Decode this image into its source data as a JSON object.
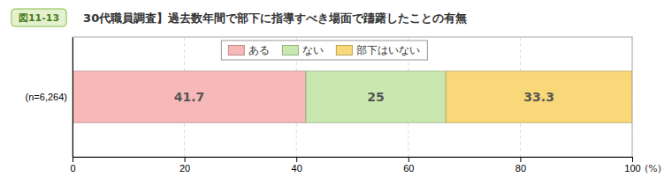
{
  "chart_data": {
    "type": "bar",
    "orientation": "horizontal",
    "stacked": true,
    "data_labels": true,
    "grid": true,
    "legend": "top",
    "title": "　30代職員調査】過去数年間で部下に指導すべき場面で躊躇したことの有無",
    "annotations": [
      "図11-13"
    ],
    "xlabel": "(%)",
    "categories": [
      "(n=6,264)"
    ],
    "series": [
      {
        "name": "ある",
        "color": "#f7b8b8",
        "values": [
          41.7
        ]
      },
      {
        "name": "ない",
        "color": "#c8e8b0",
        "values": [
          25.0
        ]
      },
      {
        "name": "部下はいない",
        "color": "#f8d878",
        "values": [
          33.3
        ]
      }
    ],
    "xlim": [
      0,
      100
    ],
    "xticks": [
      0,
      20,
      40,
      60,
      80,
      100
    ]
  }
}
